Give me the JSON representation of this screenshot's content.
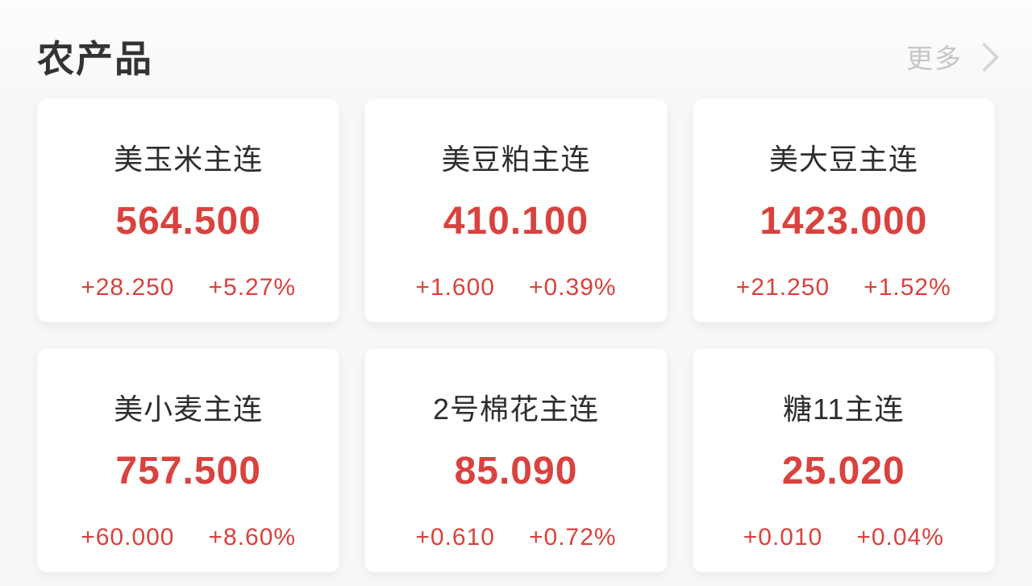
{
  "page": {
    "background_color": "#f7f8f9",
    "card_background_color": "#ffffff",
    "up_color": "#d9423e",
    "title_color": "#333333",
    "muted_color": "#c6c6c6"
  },
  "header": {
    "title": "农产品",
    "more_label": "更多",
    "chevron_icon": "chevron-right"
  },
  "cards": [
    {
      "name": "美玉米主连",
      "price": "564.500",
      "change": "+28.250",
      "change_pct": "+5.27%"
    },
    {
      "name": "美豆粕主连",
      "price": "410.100",
      "change": "+1.600",
      "change_pct": "+0.39%"
    },
    {
      "name": "美大豆主连",
      "price": "1423.000",
      "change": "+21.250",
      "change_pct": "+1.52%"
    },
    {
      "name": "美小麦主连",
      "price": "757.500",
      "change": "+60.000",
      "change_pct": "+8.60%"
    },
    {
      "name": "2号棉花主连",
      "price": "85.090",
      "change": "+0.610",
      "change_pct": "+0.72%"
    },
    {
      "name": "糖11主连",
      "price": "25.020",
      "change": "+0.010",
      "change_pct": "+0.04%"
    }
  ]
}
